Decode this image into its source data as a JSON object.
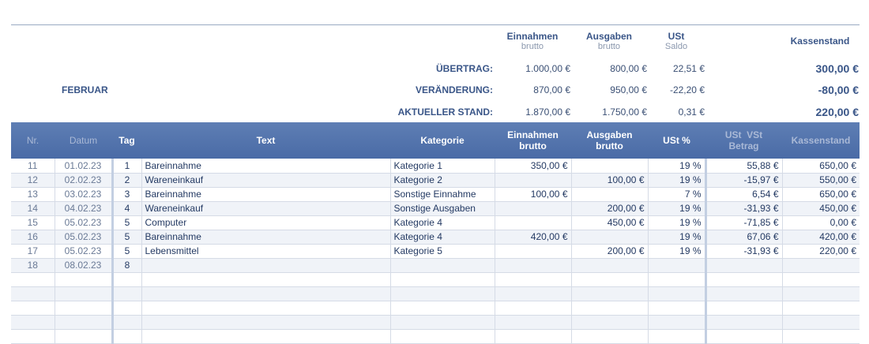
{
  "summary_header": {
    "einnahmen": "Einnahmen",
    "einnahmen_sub": "brutto",
    "ausgaben": "Ausgaben",
    "ausgaben_sub": "brutto",
    "ust": "USt",
    "ust_sub": "Saldo",
    "kassenstand": "Kassenstand"
  },
  "month": "FEBRUAR",
  "summary": {
    "uebertrag": {
      "label": "ÜBERTRAG:",
      "einnahmen": "1.000,00 €",
      "ausgaben": "800,00 €",
      "ust": "22,51 €",
      "kassenstand": "300,00 €"
    },
    "veraenderung": {
      "label": "VERÄNDERUNG:",
      "einnahmen": "870,00 €",
      "ausgaben": "950,00 €",
      "ust": "-22,20 €",
      "kassenstand": "-80,00 €"
    },
    "aktuell": {
      "label": "AKTUELLER STAND:",
      "einnahmen": "1.870,00 €",
      "ausgaben": "1.750,00 €",
      "ust": "0,31 €",
      "kassenstand": "220,00 €"
    }
  },
  "table": {
    "headers": {
      "nr": "Nr.",
      "datum": "Datum",
      "tag": "Tag",
      "text": "Text",
      "kategorie": "Kategorie",
      "einnahmen_1": "Einnahmen",
      "einnahmen_2": "brutto",
      "ausgaben_1": "Ausgaben",
      "ausgaben_2": "brutto",
      "ust_pct": "USt %",
      "ustvst_1": "USt  VSt",
      "ustvst_2": "Betrag",
      "kassenstand": "Kassenstand"
    },
    "rows": [
      {
        "nr": "11",
        "datum": "01.02.23",
        "tag": "1",
        "text": "Bareinnahme",
        "kategorie": "Kategorie 1",
        "einnahmen": "350,00 €",
        "ausgaben": "",
        "ust_pct": "19 %",
        "betrag": "55,88 €",
        "kassenstand": "650,00 €"
      },
      {
        "nr": "12",
        "datum": "02.02.23",
        "tag": "2",
        "text": "Wareneinkauf",
        "kategorie": "Kategorie 2",
        "einnahmen": "",
        "ausgaben": "100,00 €",
        "ust_pct": "19 %",
        "betrag": "-15,97 €",
        "kassenstand": "550,00 €"
      },
      {
        "nr": "13",
        "datum": "03.02.23",
        "tag": "3",
        "text": "Bareinnahme",
        "kategorie": "Sonstige Einnahme",
        "einnahmen": "100,00 €",
        "ausgaben": "",
        "ust_pct": "7 %",
        "betrag": "6,54 €",
        "kassenstand": "650,00 €"
      },
      {
        "nr": "14",
        "datum": "04.02.23",
        "tag": "4",
        "text": "Wareneinkauf",
        "kategorie": "Sonstige Ausgaben",
        "einnahmen": "",
        "ausgaben": "200,00 €",
        "ust_pct": "19 %",
        "betrag": "-31,93 €",
        "kassenstand": "450,00 €"
      },
      {
        "nr": "15",
        "datum": "05.02.23",
        "tag": "5",
        "text": "Computer",
        "kategorie": "Kategorie 4",
        "einnahmen": "",
        "ausgaben": "450,00 €",
        "ust_pct": "19 %",
        "betrag": "-71,85 €",
        "kassenstand": "0,00 €"
      },
      {
        "nr": "16",
        "datum": "05.02.23",
        "tag": "5",
        "text": "Bareinnahme",
        "kategorie": "Kategorie 4",
        "einnahmen": "420,00 €",
        "ausgaben": "",
        "ust_pct": "19 %",
        "betrag": "67,06 €",
        "kassenstand": "420,00 €"
      },
      {
        "nr": "17",
        "datum": "05.02.23",
        "tag": "5",
        "text": "Lebensmittel",
        "kategorie": "Kategorie 5",
        "einnahmen": "",
        "ausgaben": "200,00 €",
        "ust_pct": "19 %",
        "betrag": "-31,93 €",
        "kassenstand": "220,00 €"
      },
      {
        "nr": "18",
        "datum": "08.02.23",
        "tag": "8",
        "text": "",
        "kategorie": "",
        "einnahmen": "",
        "ausgaben": "",
        "ust_pct": "",
        "betrag": "",
        "kassenstand": ""
      },
      {
        "nr": "",
        "datum": "",
        "tag": "",
        "text": "",
        "kategorie": "",
        "einnahmen": "",
        "ausgaben": "",
        "ust_pct": "",
        "betrag": "",
        "kassenstand": ""
      },
      {
        "nr": "",
        "datum": "",
        "tag": "",
        "text": "",
        "kategorie": "",
        "einnahmen": "",
        "ausgaben": "",
        "ust_pct": "",
        "betrag": "",
        "kassenstand": ""
      },
      {
        "nr": "",
        "datum": "",
        "tag": "",
        "text": "",
        "kategorie": "",
        "einnahmen": "",
        "ausgaben": "",
        "ust_pct": "",
        "betrag": "",
        "kassenstand": ""
      },
      {
        "nr": "",
        "datum": "",
        "tag": "",
        "text": "",
        "kategorie": "",
        "einnahmen": "",
        "ausgaben": "",
        "ust_pct": "",
        "betrag": "",
        "kassenstand": ""
      },
      {
        "nr": "",
        "datum": "",
        "tag": "",
        "text": "",
        "kategorie": "",
        "einnahmen": "",
        "ausgaben": "",
        "ust_pct": "",
        "betrag": "",
        "kassenstand": ""
      }
    ]
  }
}
